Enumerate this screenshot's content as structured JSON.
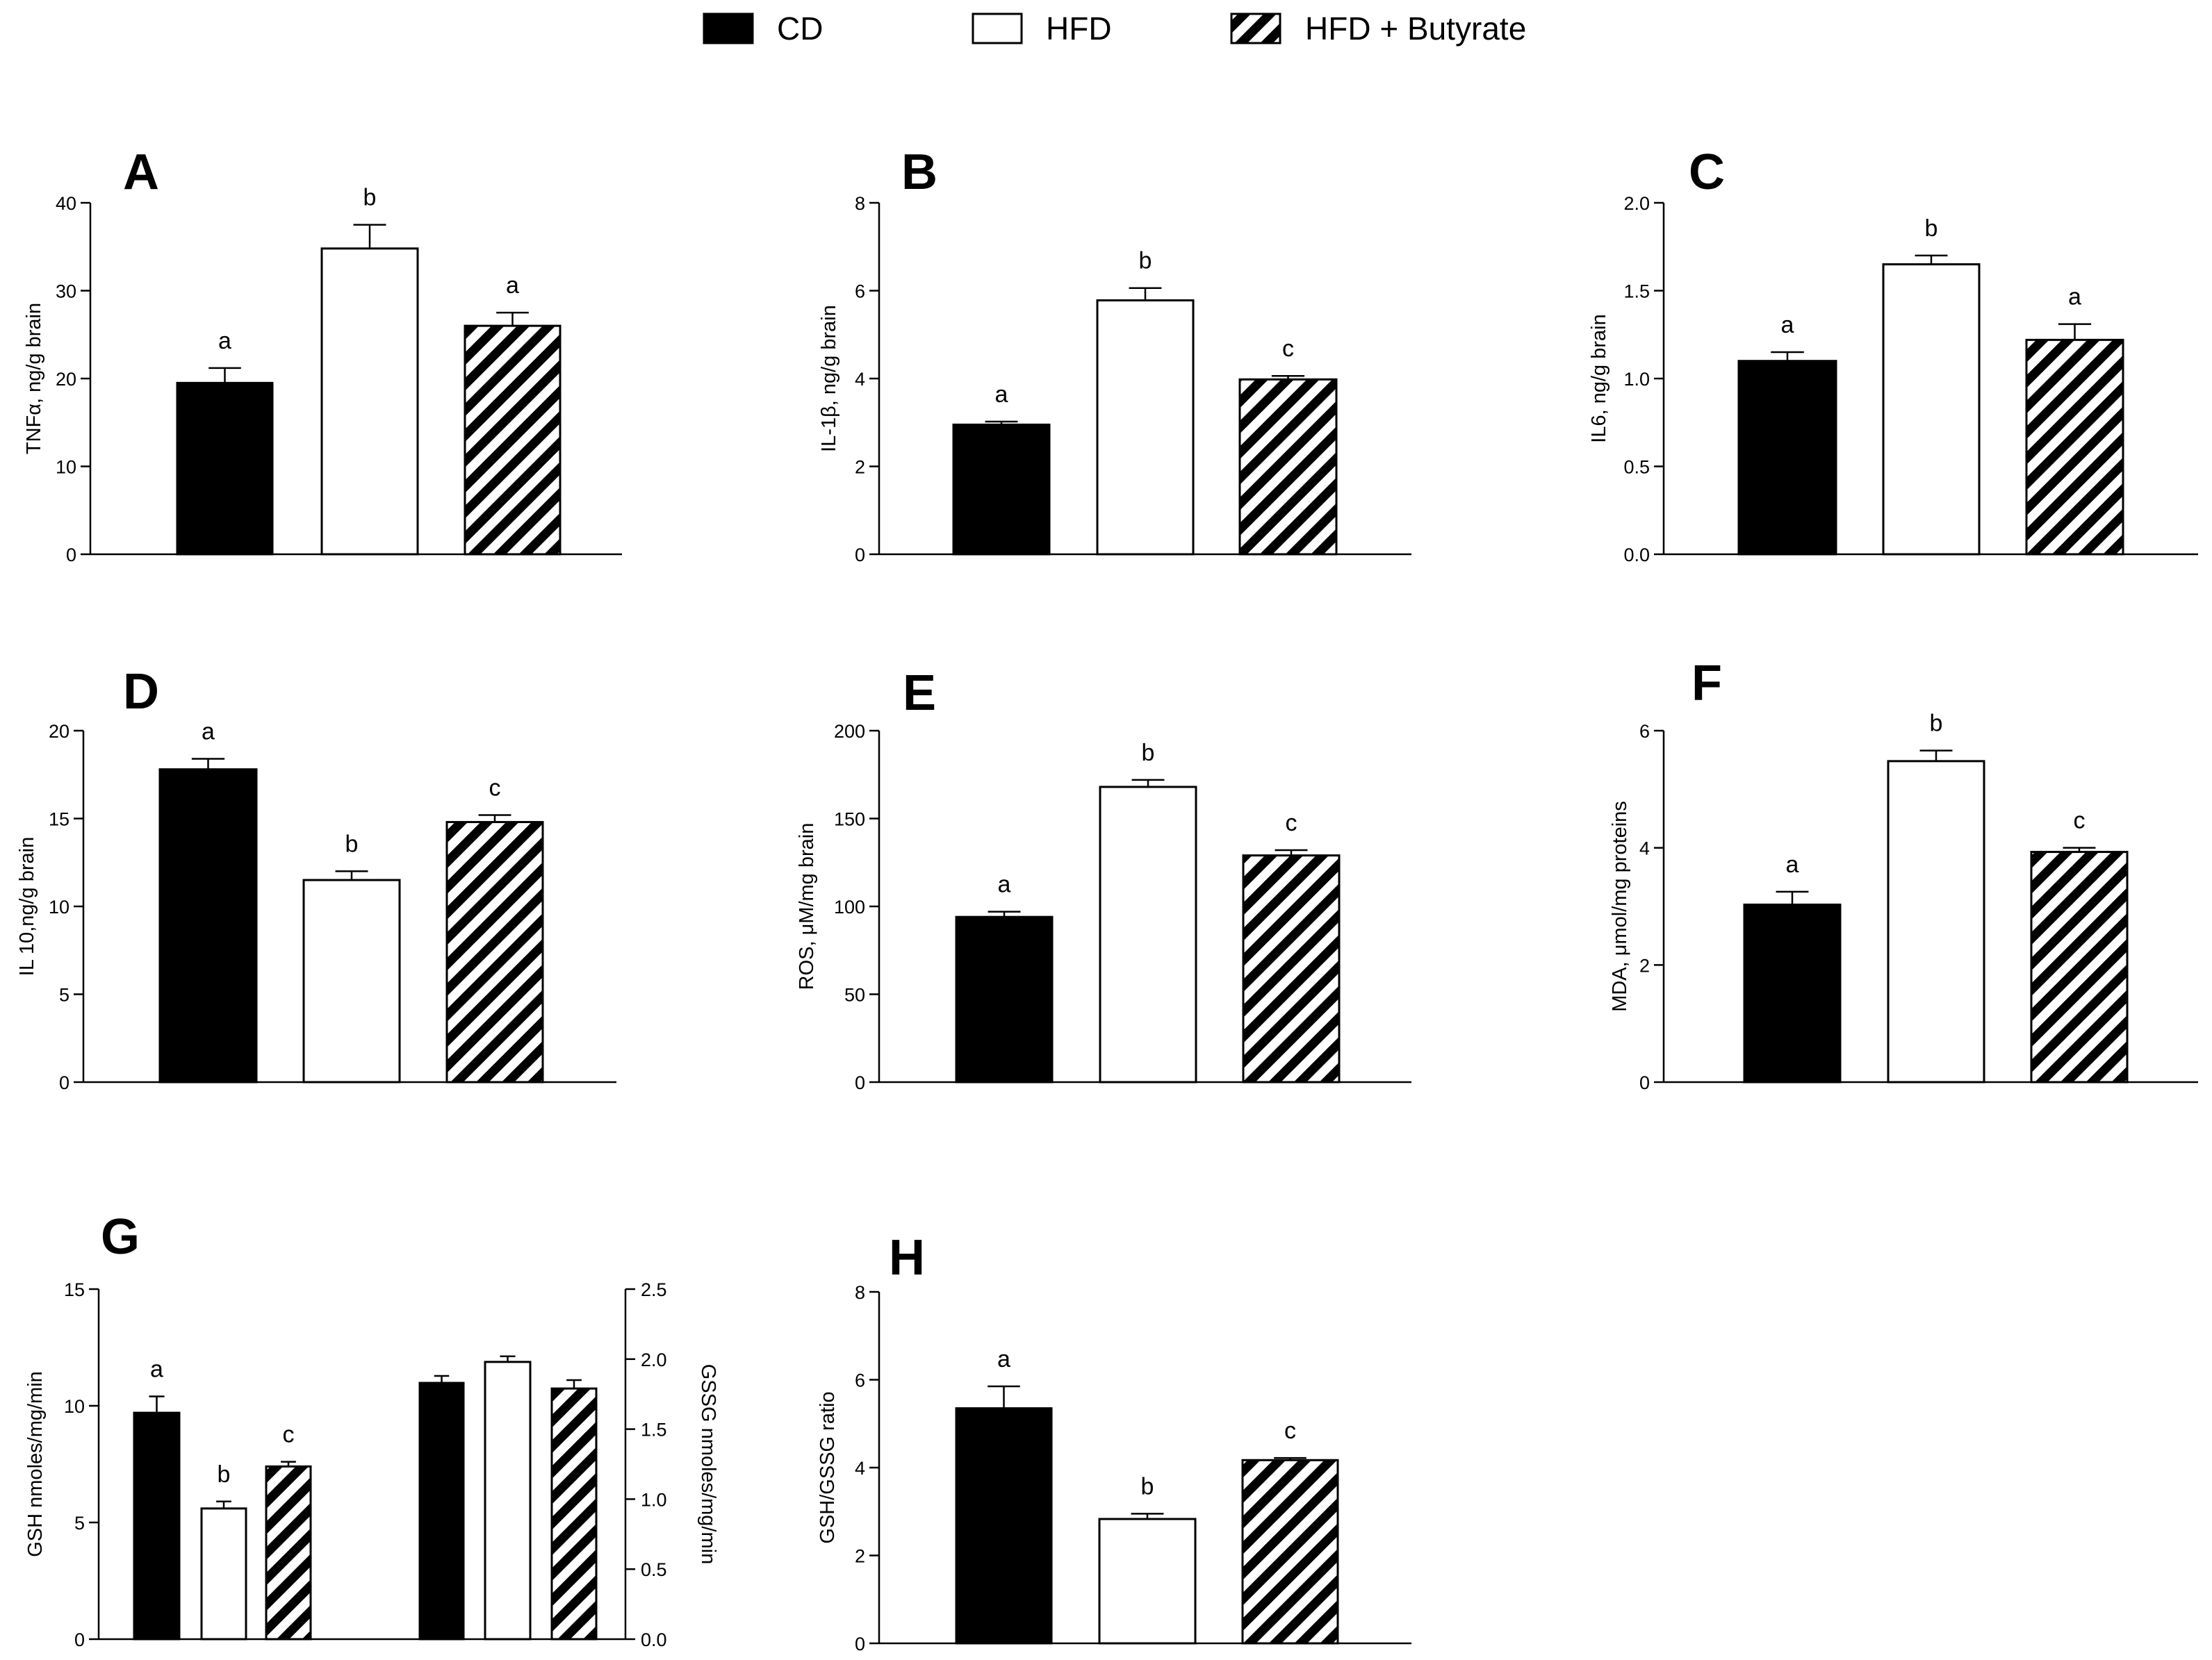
{
  "figure_title": "",
  "legend": {
    "items": [
      {
        "name": "CD",
        "style": "black"
      },
      {
        "name": "HFD",
        "style": "white"
      },
      {
        "name": "HFD + Butyrate",
        "style": "hatch"
      }
    ]
  },
  "chart_data": [
    {
      "type": "bar",
      "panel": "A",
      "ylabel": "TNFα, ng/g brain",
      "ylim": [
        0,
        40
      ],
      "yticks": [
        0,
        10,
        20,
        30,
        40
      ],
      "ytick_labels": [
        "0",
        "10",
        "20",
        "30",
        "40"
      ],
      "categories": [
        "CD",
        "HFD",
        "HFD + Butyrate"
      ],
      "values": [
        19.5,
        34.8,
        26.0
      ],
      "errors": [
        1.7,
        2.7,
        1.5
      ],
      "sig_labels": [
        "a",
        "b",
        "a"
      ]
    },
    {
      "type": "bar",
      "panel": "B",
      "ylabel": "IL-1β, ng/g brain",
      "ylim": [
        0,
        8
      ],
      "yticks": [
        0,
        2,
        4,
        6,
        8
      ],
      "ytick_labels": [
        "0",
        "2",
        "4",
        "6",
        "8"
      ],
      "categories": [
        "CD",
        "HFD",
        "HFD + Butyrate"
      ],
      "values": [
        2.95,
        5.78,
        3.98
      ],
      "errors": [
        0.07,
        0.28,
        0.08
      ],
      "sig_labels": [
        "a",
        "b",
        "c"
      ]
    },
    {
      "type": "bar",
      "panel": "C",
      "ylabel": "IL6, ng/g brain",
      "ylim": [
        0,
        2
      ],
      "yticks": [
        0,
        0.5,
        1,
        1.5,
        2
      ],
      "ytick_labels": [
        "0.0",
        "0.5",
        "1.0",
        "1.5",
        "2.0"
      ],
      "categories": [
        "CD",
        "HFD",
        "HFD + Butyrate"
      ],
      "values": [
        1.1,
        1.65,
        1.22
      ],
      "errors": [
        0.05,
        0.05,
        0.09
      ],
      "sig_labels": [
        "a",
        "b",
        "a"
      ]
    },
    {
      "type": "bar",
      "panel": "D",
      "ylabel": "IL 10,ng/g brain",
      "ylim": [
        0,
        20
      ],
      "yticks": [
        0,
        5,
        10,
        15,
        20
      ],
      "ytick_labels": [
        "0",
        "5",
        "10",
        "15",
        "20"
      ],
      "categories": [
        "CD",
        "HFD",
        "HFD + Butyrate"
      ],
      "values": [
        17.8,
        11.5,
        14.8
      ],
      "errors": [
        0.6,
        0.5,
        0.4
      ],
      "sig_labels": [
        "a",
        "b",
        "c"
      ]
    },
    {
      "type": "bar",
      "panel": "E",
      "ylabel": "ROS, μM/mg brain",
      "ylim": [
        0,
        200
      ],
      "yticks": [
        0,
        50,
        100,
        150,
        200
      ],
      "ytick_labels": [
        "0",
        "50",
        "100",
        "150",
        "200"
      ],
      "categories": [
        "CD",
        "HFD",
        "HFD + Butyrate"
      ],
      "values": [
        94,
        168,
        129
      ],
      "errors": [
        3,
        4,
        3
      ],
      "sig_labels": [
        "a",
        "b",
        "c"
      ]
    },
    {
      "type": "bar",
      "panel": "F",
      "ylabel": "MDA, μmol/mg proteins",
      "ylim": [
        0,
        6
      ],
      "yticks": [
        0,
        2,
        4,
        6
      ],
      "ytick_labels": [
        "0",
        "2",
        "4",
        "6"
      ],
      "categories": [
        "CD",
        "HFD",
        "HFD + Butyrate"
      ],
      "values": [
        3.03,
        5.48,
        3.93
      ],
      "errors": [
        0.22,
        0.18,
        0.07
      ],
      "sig_labels": [
        "a",
        "b",
        "c"
      ]
    },
    {
      "type": "bar",
      "panel": "G",
      "dual_axis": true,
      "ylabel": "GSH nmoles/mg/min",
      "ylim": [
        0,
        15
      ],
      "yticks": [
        0,
        5,
        10,
        15
      ],
      "ytick_labels": [
        "0",
        "5",
        "10",
        "15"
      ],
      "y2label": "GSSG nmoles/mg/min",
      "y2lim": [
        0,
        2.5
      ],
      "y2ticks": [
        0,
        0.5,
        1,
        1.5,
        2,
        2.5
      ],
      "y2tick_labels": [
        "0.0",
        "0.5",
        "1.0",
        "1.5",
        "2.0",
        "2.5"
      ],
      "categories": [
        "CD",
        "HFD",
        "HFD + Butyrate"
      ],
      "series": [
        {
          "name": "GSH",
          "axis": "left",
          "values": [
            9.7,
            5.6,
            7.4
          ],
          "errors": [
            0.7,
            0.3,
            0.2
          ],
          "sig_labels": [
            "a",
            "b",
            "c"
          ]
        },
        {
          "name": "GSSG",
          "axis": "right",
          "values": [
            1.83,
            1.98,
            1.79
          ],
          "errors": [
            0.05,
            0.04,
            0.06
          ],
          "sig_labels": [
            "",
            "",
            ""
          ]
        }
      ]
    },
    {
      "type": "bar",
      "panel": "H",
      "ylabel": "GSH/GSSG ratio",
      "ylim": [
        0,
        8
      ],
      "yticks": [
        0,
        2,
        4,
        6,
        8
      ],
      "ytick_labels": [
        "0",
        "2",
        "4",
        "6",
        "8"
      ],
      "categories": [
        "CD",
        "HFD",
        "HFD + Butyrate"
      ],
      "values": [
        5.35,
        2.83,
        4.17
      ],
      "errors": [
        0.5,
        0.12,
        0.05
      ],
      "sig_labels": [
        "a",
        "b",
        "c"
      ]
    }
  ]
}
